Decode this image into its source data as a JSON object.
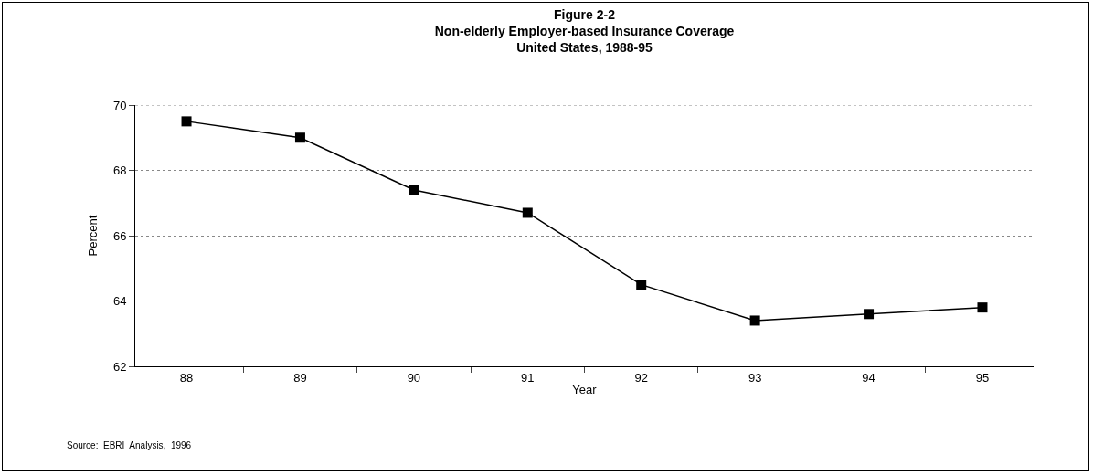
{
  "chart_data": {
    "type": "line",
    "title": "Figure 2-2\nNon-elderly Employer-based Insurance Coverage\nUnited States, 1988-95",
    "xlabel": "Year",
    "ylabel": "Percent",
    "categories": [
      "88",
      "89",
      "90",
      "91",
      "92",
      "93",
      "94",
      "95"
    ],
    "series": [
      {
        "color": "#000000",
        "values": [
          69.5,
          69.0,
          67.4,
          66.7,
          64.5,
          63.4,
          63.6,
          63.8
        ]
      }
    ],
    "ylim": [
      62,
      70
    ],
    "yticks": [
      62,
      64,
      66,
      68,
      70
    ],
    "grid": "y",
    "marker": "square",
    "line_style": "solid",
    "annotations": [
      "Source:  EBRI  Analysis,  1996"
    ]
  }
}
